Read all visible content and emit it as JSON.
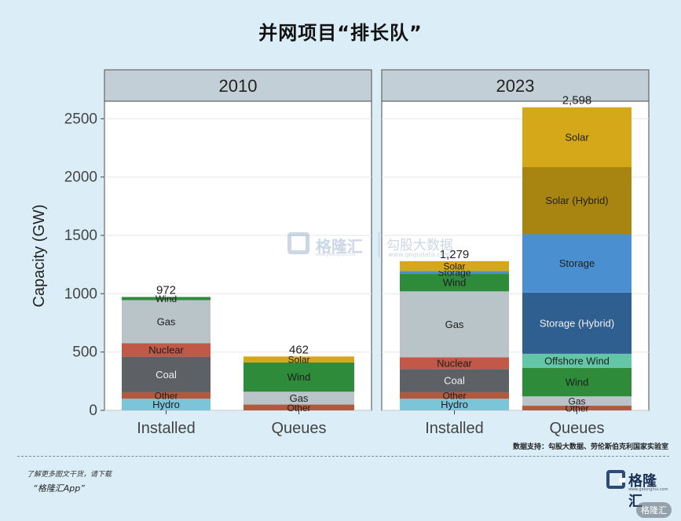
{
  "title": "并网项目“排长队”",
  "chart_data": {
    "type": "bar",
    "stacked": true,
    "ylabel": "Capacity (GW)",
    "ylim": [
      0,
      2650
    ],
    "yticks": [
      0,
      500,
      1000,
      1500,
      2000,
      2500
    ],
    "categories": [
      "Installed",
      "Queues"
    ],
    "panels": [
      {
        "label": "2010",
        "bars": [
          {
            "category": "Installed",
            "total_label": "972",
            "segments": [
              {
                "name": "Hydro",
                "value": 100,
                "color": "#7cc4d8"
              },
              {
                "name": "Other",
                "value": 55,
                "color": "#b05a3f"
              },
              {
                "name": "Coal",
                "value": 305,
                "color": "#5d6166"
              },
              {
                "name": "Nuclear",
                "value": 115,
                "color": "#c25848"
              },
              {
                "name": "Gas",
                "value": 370,
                "color": "#b8c4c8"
              },
              {
                "name": "Wind",
                "value": 27,
                "color": "#2e8b3a"
              }
            ]
          },
          {
            "category": "Queues",
            "total_label": "462",
            "segments": [
              {
                "name": "Other",
                "value": 50,
                "color": "#b05a3f"
              },
              {
                "name": "Gas",
                "value": 110,
                "color": "#b8c4c8"
              },
              {
                "name": "Wind",
                "value": 250,
                "color": "#2e8b3a"
              },
              {
                "name": "Solar",
                "value": 52,
                "color": "#d4a818"
              }
            ]
          }
        ]
      },
      {
        "label": "2023",
        "bars": [
          {
            "category": "Installed",
            "total_label": "1,279",
            "segments": [
              {
                "name": "Hydro",
                "value": 100,
                "color": "#7cc4d8"
              },
              {
                "name": "Other",
                "value": 55,
                "color": "#b05a3f"
              },
              {
                "name": "Coal",
                "value": 200,
                "color": "#5d6166"
              },
              {
                "name": "Nuclear",
                "value": 100,
                "color": "#c25848"
              },
              {
                "name": "Gas",
                "value": 565,
                "color": "#b8c4c8"
              },
              {
                "name": "Wind",
                "value": 150,
                "color": "#2e8b3a"
              },
              {
                "name": "Storage",
                "value": 25,
                "color": "#4a90d0"
              },
              {
                "name": "Solar",
                "value": 84,
                "color": "#d4a818"
              }
            ]
          },
          {
            "category": "Queues",
            "total_label": "2,598",
            "segments": [
              {
                "name": "Other",
                "value": 40,
                "color": "#b05a3f"
              },
              {
                "name": "Gas",
                "value": 80,
                "color": "#b8c4c8"
              },
              {
                "name": "Wind",
                "value": 245,
                "color": "#2e8b3a"
              },
              {
                "name": "Offshore Wind",
                "value": 120,
                "color": "#63c7a7"
              },
              {
                "name": "Storage (Hybrid)",
                "value": 525,
                "color": "#2f5f90"
              },
              {
                "name": "Storage",
                "value": 500,
                "color": "#4a90d0"
              },
              {
                "name": "Solar (Hybrid)",
                "value": 575,
                "color": "#a88410"
              },
              {
                "name": "Solar",
                "value": 513,
                "color": "#d4a818"
              }
            ]
          }
        ]
      }
    ]
  },
  "source": "数据支持：勾股大数据、劳伦斯伯克利国家实验室",
  "footer": {
    "line1": "了解更多图文干货，请下载",
    "line2": "“格隆汇App”",
    "logo_name": "格隆汇",
    "logo_url": "www.gelonghui.com"
  },
  "watermark": {
    "name": "格隆汇",
    "url": "www.gelonghui.com",
    "partner": "勾股大数据",
    "partner_url": "www.gogudata.com",
    "badge": "格隆汇"
  }
}
